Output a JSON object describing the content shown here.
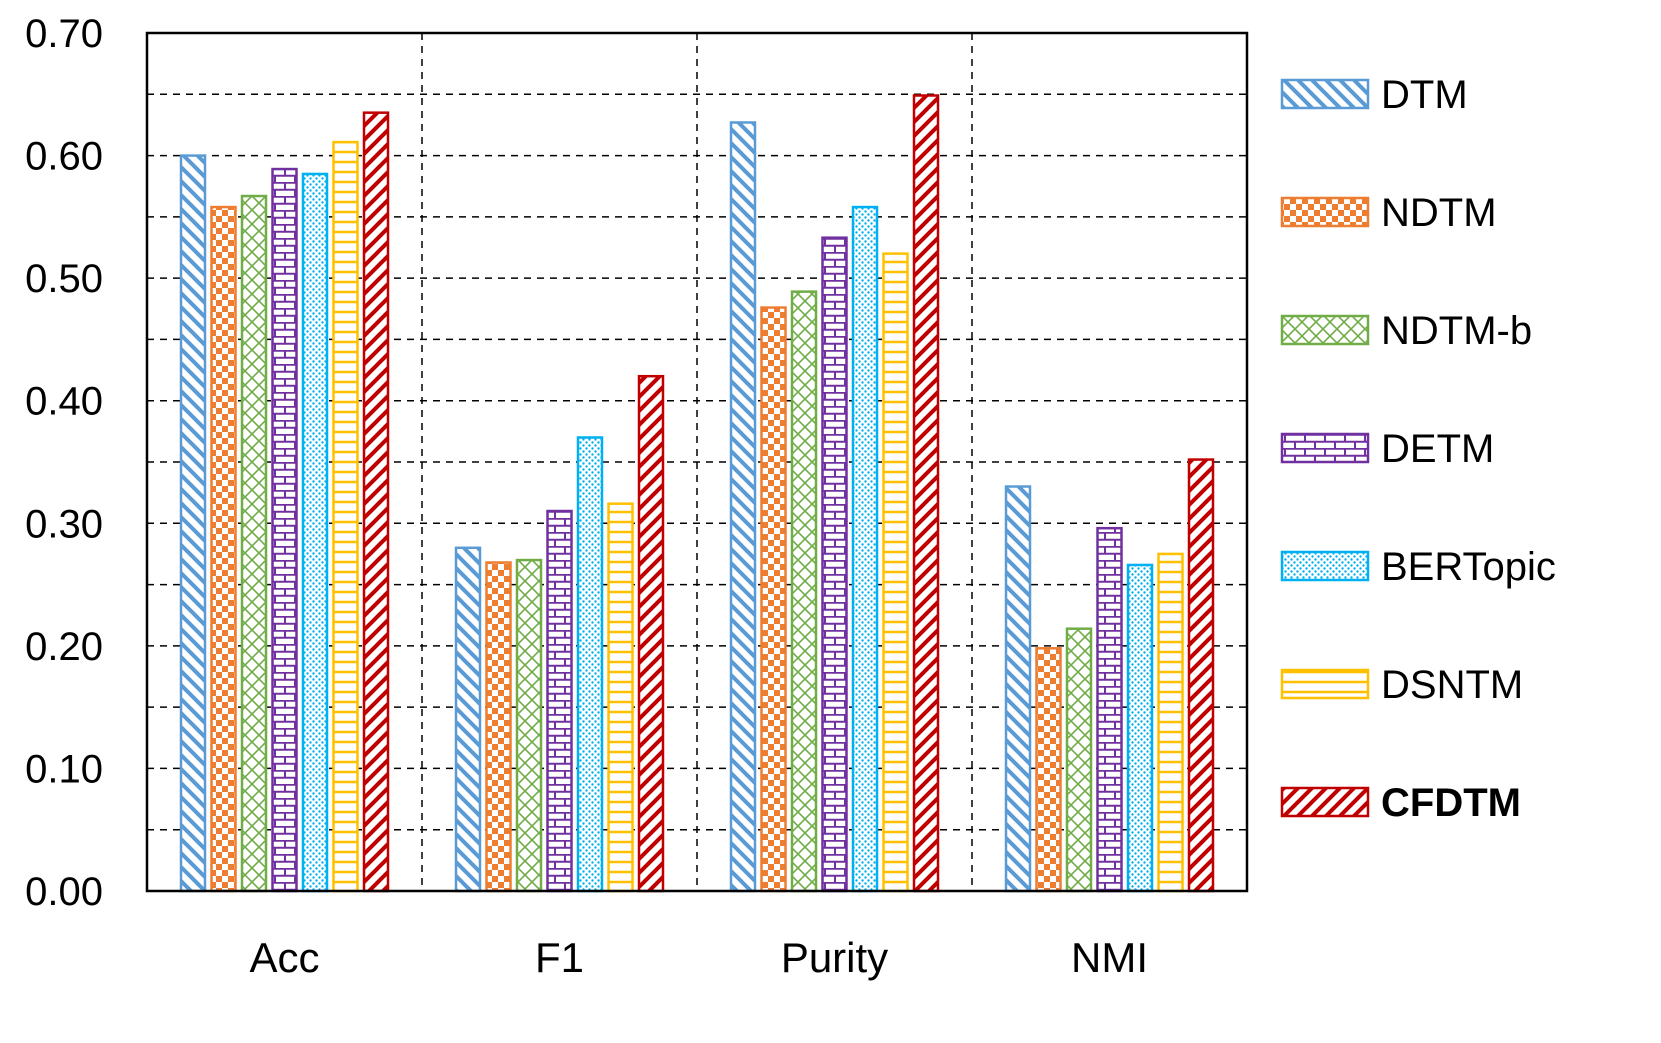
{
  "chart_data": {
    "type": "bar",
    "title": "",
    "xlabel": "",
    "ylabel": "",
    "ylim": [
      0,
      0.7
    ],
    "ytick_step": 0.1,
    "ytick_labels": [
      "0.00",
      "0.10",
      "0.20",
      "0.30",
      "0.40",
      "0.50",
      "0.60",
      "0.70"
    ],
    "grid": true,
    "legend_position": "right",
    "categories": [
      "Acc",
      "F1",
      "Purity",
      "NMI"
    ],
    "series": [
      {
        "name": "DTM",
        "values": [
          0.6,
          0.28,
          0.627,
          0.33
        ],
        "color": "#5B9BD5",
        "pattern": "diag-back",
        "bold": false
      },
      {
        "name": "NDTM",
        "values": [
          0.558,
          0.268,
          0.476,
          0.198
        ],
        "color": "#ED7D31",
        "pattern": "checker",
        "bold": false
      },
      {
        "name": "NDTM-b",
        "values": [
          0.567,
          0.27,
          0.489,
          0.214
        ],
        "color": "#70AD47",
        "pattern": "crosshatch",
        "bold": false
      },
      {
        "name": "DETM",
        "values": [
          0.589,
          0.31,
          0.533,
          0.296
        ],
        "color": "#7030A0",
        "pattern": "brick",
        "bold": false
      },
      {
        "name": "BERTopic",
        "values": [
          0.585,
          0.37,
          0.558,
          0.266
        ],
        "color": "#00B0F0",
        "pattern": "dots",
        "bold": false
      },
      {
        "name": "DSNTM",
        "values": [
          0.611,
          0.316,
          0.52,
          0.275
        ],
        "color": "#FFC000",
        "pattern": "hlines",
        "bold": false
      },
      {
        "name": "CFDTM",
        "values": [
          0.635,
          0.42,
          0.649,
          0.352
        ],
        "color": "#C00000",
        "pattern": "diag-fwd",
        "bold": true
      }
    ]
  }
}
